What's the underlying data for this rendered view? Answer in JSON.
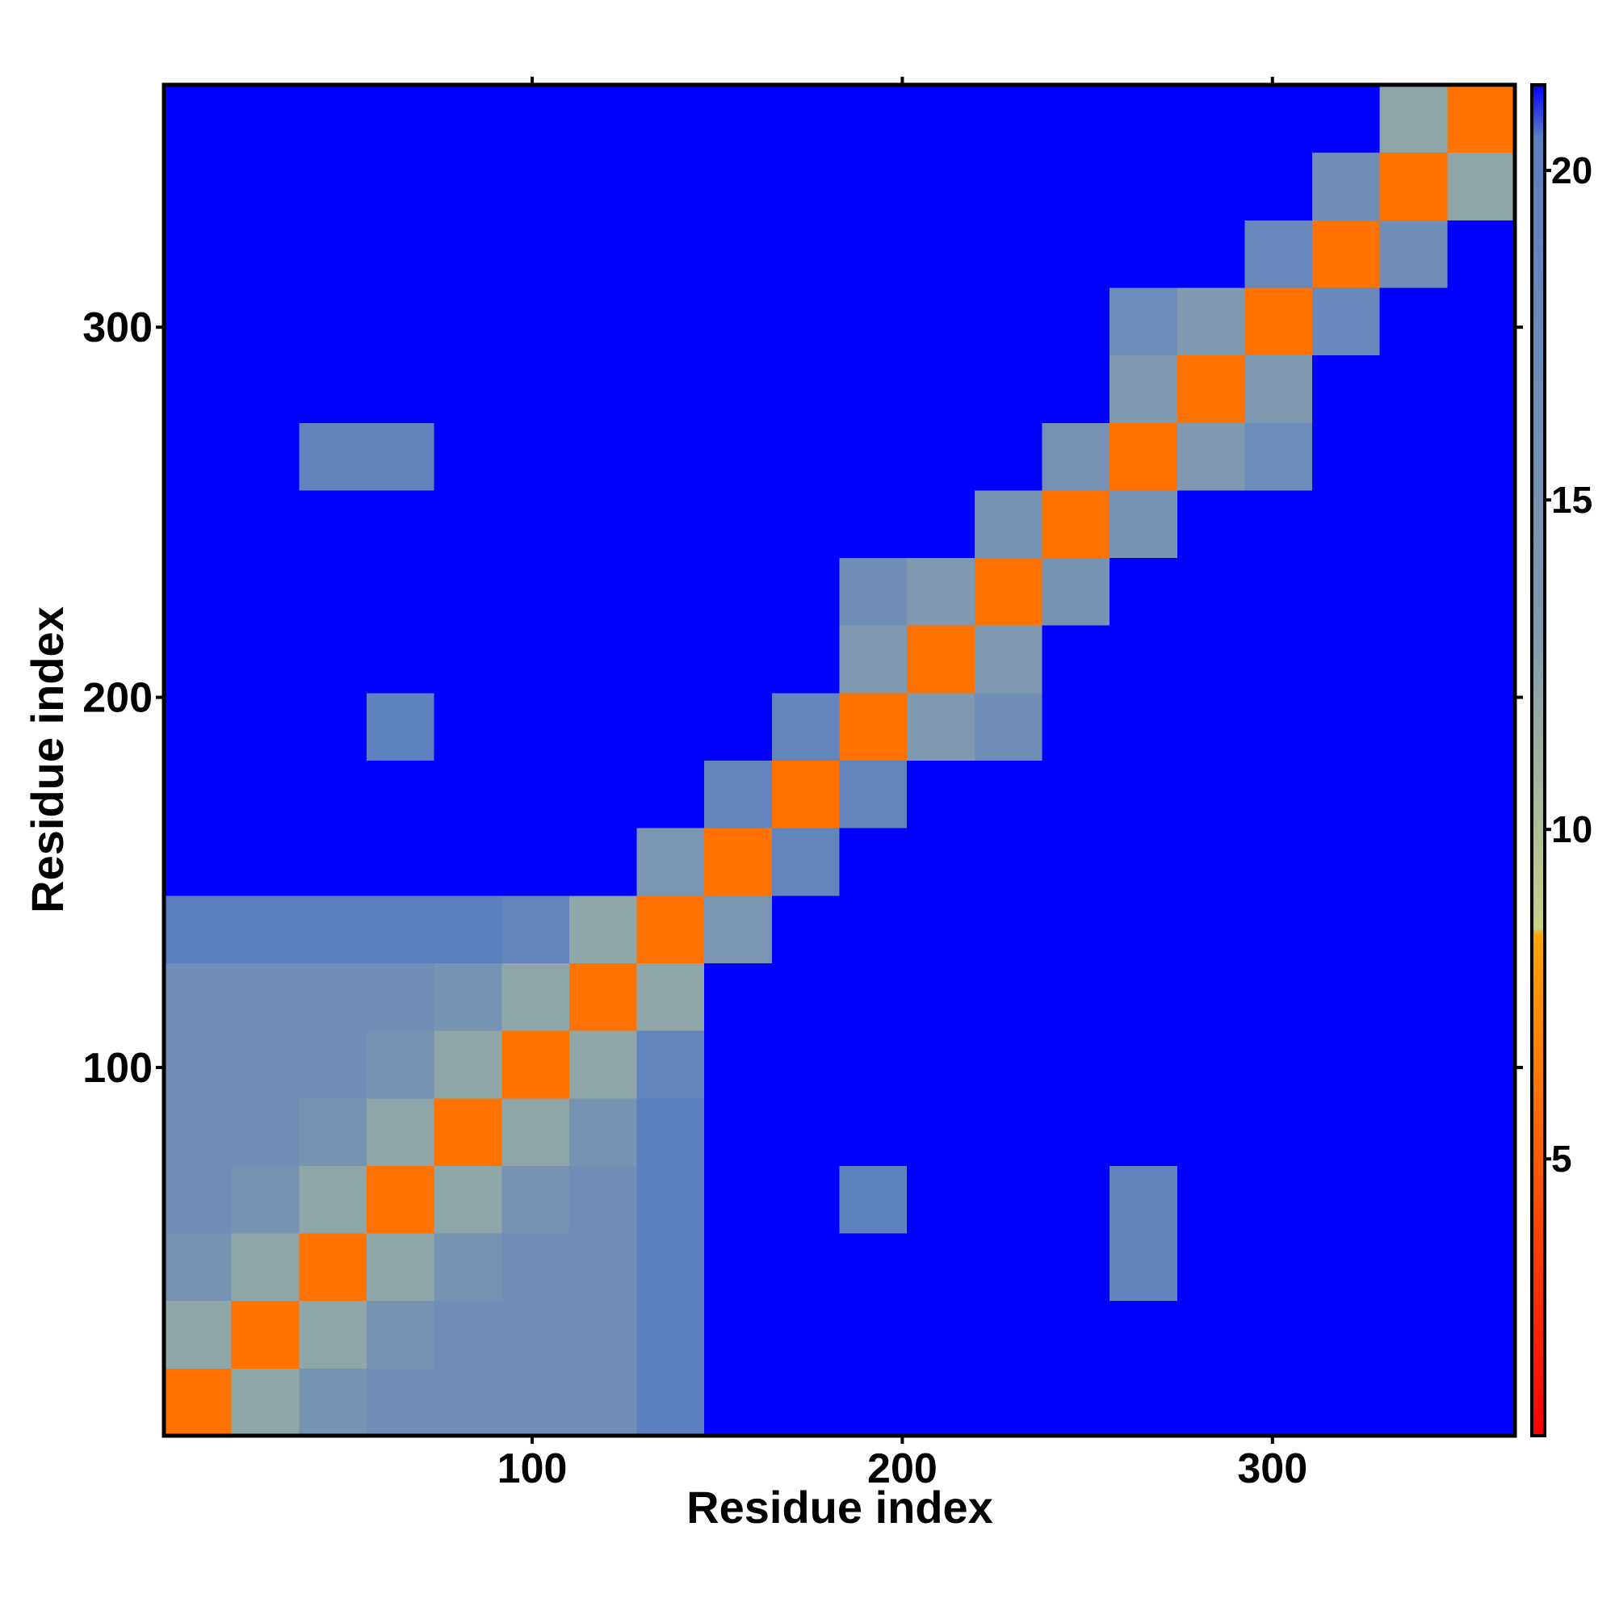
{
  "chart_data": {
    "type": "heatmap",
    "xlabel": "Residue index",
    "ylabel": "Residue index",
    "xlim": [
      0.5,
      365.5
    ],
    "ylim": [
      0.5,
      365.5
    ],
    "xticks": [
      100,
      200,
      300
    ],
    "yticks": [
      100,
      200,
      300
    ],
    "x_edges": [
      0.5,
      18.75,
      37,
      55.25,
      73.5,
      91.75,
      110,
      128.25,
      146.5,
      164.75,
      183,
      201.25,
      219.5,
      237.75,
      256,
      274.25,
      292.5,
      310.75,
      329,
      347.25,
      365.5
    ],
    "y_edges": [
      0.5,
      18.75,
      37,
      55.25,
      73.5,
      91.75,
      110,
      128.25,
      146.5,
      164.75,
      183,
      201.25,
      219.5,
      237.75,
      256,
      274.25,
      292.5,
      310.75,
      329,
      347.25,
      365.5
    ],
    "z": [
      [
        6,
        12,
        15,
        16,
        16,
        16,
        16,
        20.5,
        21.3,
        21.3,
        21.3,
        21.3,
        21.3,
        21.3,
        21.3,
        21.3,
        21.3,
        21.3,
        21.3,
        21.3
      ],
      [
        12,
        6,
        12,
        15,
        16,
        16,
        16,
        20.5,
        21.3,
        21.3,
        21.3,
        21.3,
        21.3,
        21.3,
        21.3,
        21.3,
        21.3,
        21.3,
        21.3,
        21.3
      ],
      [
        15,
        12,
        6,
        12,
        15,
        16,
        16,
        20.5,
        21.3,
        21.3,
        21.3,
        21.3,
        21.3,
        21.3,
        19.5,
        21.3,
        21.3,
        21.3,
        21.3,
        21.3
      ],
      [
        16,
        15,
        12,
        6,
        12,
        15,
        16,
        20.5,
        21.3,
        21.3,
        20,
        21.3,
        21.3,
        21.3,
        19.5,
        21.3,
        21.3,
        21.3,
        21.3,
        21.3
      ],
      [
        16,
        16,
        15,
        12,
        6,
        12,
        15,
        20.5,
        21.3,
        21.3,
        21.3,
        21.3,
        21.3,
        21.3,
        21.3,
        21.3,
        21.3,
        21.3,
        21.3,
        21.3
      ],
      [
        16,
        16,
        16,
        15,
        12,
        6,
        12,
        19,
        21.3,
        21.3,
        21.3,
        21.3,
        21.3,
        21.3,
        21.3,
        21.3,
        21.3,
        21.3,
        21.3,
        21.3
      ],
      [
        16,
        16,
        16,
        16,
        15,
        12,
        6,
        12,
        21.3,
        21.3,
        21.3,
        21.3,
        21.3,
        21.3,
        21.3,
        21.3,
        21.3,
        21.3,
        21.3,
        21.3
      ],
      [
        20.5,
        20.5,
        20.5,
        20.5,
        20.5,
        19,
        12,
        6,
        14,
        21.3,
        21.3,
        21.3,
        21.3,
        21.3,
        21.3,
        21.3,
        21.3,
        21.3,
        21.3,
        21.3
      ],
      [
        21.3,
        21.3,
        21.3,
        21.3,
        21.3,
        21.3,
        21.3,
        14,
        6,
        19,
        21.3,
        21.3,
        21.3,
        21.3,
        21.3,
        21.3,
        21.3,
        21.3,
        21.3,
        21.3
      ],
      [
        21.3,
        21.3,
        21.3,
        21.3,
        21.3,
        21.3,
        21.3,
        21.3,
        19,
        6,
        19,
        21.3,
        21.3,
        21.3,
        21.3,
        21.3,
        21.3,
        21.3,
        21.3,
        21.3
      ],
      [
        21.3,
        21.3,
        21.3,
        20,
        21.3,
        21.3,
        21.3,
        21.3,
        21.3,
        19,
        6,
        13,
        16,
        21.3,
        21.3,
        21.3,
        21.3,
        21.3,
        21.3,
        21.3
      ],
      [
        21.3,
        21.3,
        21.3,
        21.3,
        21.3,
        21.3,
        21.3,
        21.3,
        21.3,
        21.3,
        13,
        6,
        13,
        21.3,
        21.3,
        21.3,
        21.3,
        21.3,
        21.3,
        21.3
      ],
      [
        21.3,
        21.3,
        21.3,
        21.3,
        21.3,
        21.3,
        21.3,
        21.3,
        21.3,
        21.3,
        16,
        13,
        6,
        15,
        21.3,
        21.3,
        21.3,
        21.3,
        21.3,
        21.3
      ],
      [
        21.3,
        21.3,
        21.3,
        21.3,
        21.3,
        21.3,
        21.3,
        21.3,
        21.3,
        21.3,
        21.3,
        21.3,
        15,
        6,
        15,
        21.3,
        21.3,
        21.3,
        21.3,
        21.3
      ],
      [
        21.3,
        21.3,
        19.5,
        19.5,
        21.3,
        21.3,
        21.3,
        21.3,
        21.3,
        21.3,
        21.3,
        21.3,
        21.3,
        15,
        6,
        13,
        17,
        21.3,
        21.3,
        21.3
      ],
      [
        21.3,
        21.3,
        21.3,
        21.3,
        21.3,
        21.3,
        21.3,
        21.3,
        21.3,
        21.3,
        21.3,
        21.3,
        21.3,
        21.3,
        13,
        6,
        13,
        21.3,
        21.3,
        21.3
      ],
      [
        21.3,
        21.3,
        21.3,
        21.3,
        21.3,
        21.3,
        21.3,
        21.3,
        21.3,
        21.3,
        21.3,
        21.3,
        21.3,
        21.3,
        17,
        13,
        6,
        18,
        21.3,
        21.3
      ],
      [
        21.3,
        21.3,
        21.3,
        21.3,
        21.3,
        21.3,
        21.3,
        21.3,
        21.3,
        21.3,
        21.3,
        21.3,
        21.3,
        21.3,
        21.3,
        21.3,
        18,
        6,
        16,
        21.3
      ],
      [
        21.3,
        21.3,
        21.3,
        21.3,
        21.3,
        21.3,
        21.3,
        21.3,
        21.3,
        21.3,
        21.3,
        21.3,
        21.3,
        21.3,
        21.3,
        21.3,
        21.3,
        16,
        6,
        12
      ],
      [
        21.3,
        21.3,
        21.3,
        21.3,
        21.3,
        21.3,
        21.3,
        21.3,
        21.3,
        21.3,
        21.3,
        21.3,
        21.3,
        21.3,
        21.3,
        21.3,
        21.3,
        21.3,
        12,
        6
      ]
    ],
    "zlim": [
      0.8,
      21.3
    ],
    "zticks": [
      5,
      10,
      15,
      20
    ],
    "colorscale": [
      {
        "value": 0.8,
        "color": "#ff0000"
      },
      {
        "value": 8.4,
        "color": "#ffa500"
      },
      {
        "value": 8.5,
        "color": "#c8d08a"
      },
      {
        "value": 13,
        "color": "#7f9ab0"
      },
      {
        "value": 20.5,
        "color": "#5c7fc0"
      },
      {
        "value": 21.3,
        "color": "#0000ff"
      }
    ]
  }
}
